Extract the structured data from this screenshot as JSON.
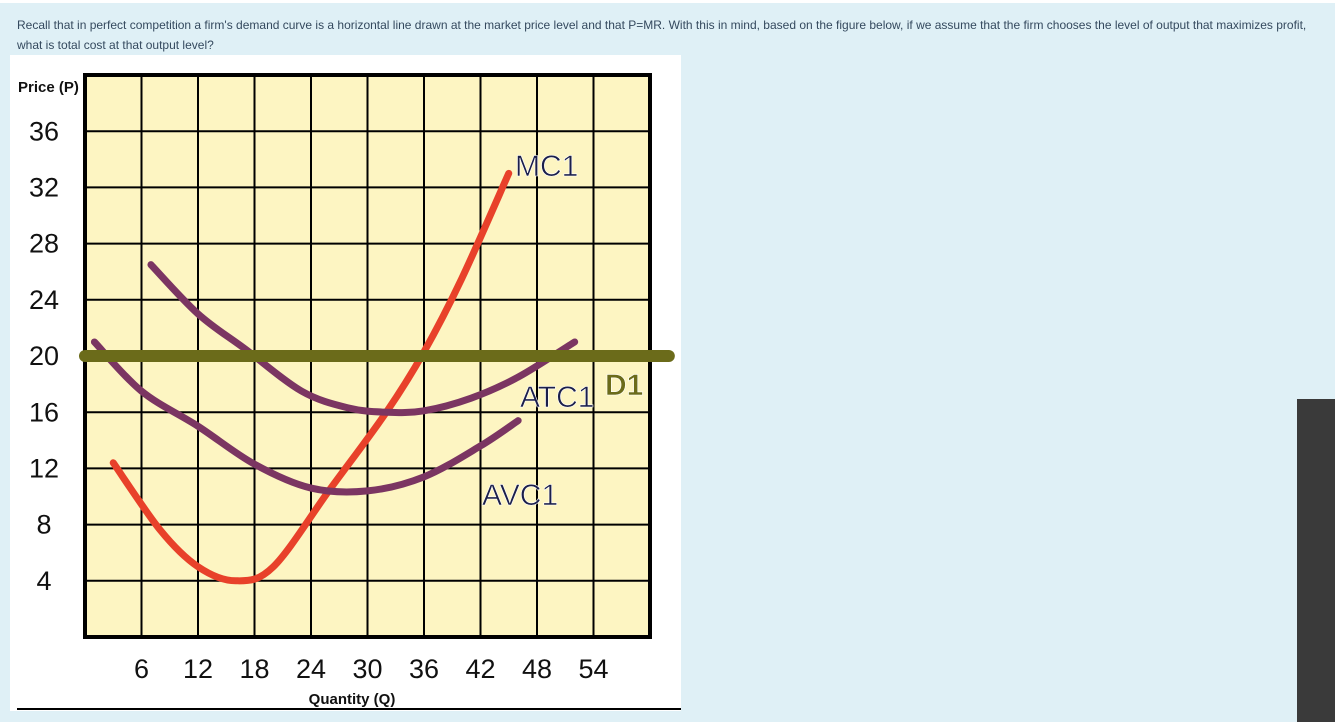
{
  "question": "Recall that in perfect competition a firm's demand curve is a horizontal line drawn at the market price level and that P=MR. With this in mind, based on the figure below, if we assume that the firm chooses the level of output that maximizes profit, what is total cost at that output level?",
  "chart_data": {
    "type": "line",
    "xlabel": "Quantity (Q)",
    "ylabel": "Price (P)",
    "xlim": [
      0,
      60
    ],
    "ylim": [
      0,
      40
    ],
    "xticks": [
      6,
      12,
      18,
      24,
      30,
      36,
      42,
      48,
      54
    ],
    "yticks": [
      4,
      8,
      12,
      16,
      20,
      24,
      28,
      32,
      36
    ],
    "grid": true,
    "series": [
      {
        "name": "MC1",
        "color": "#e8412a",
        "x": [
          3,
          8,
          12,
          16,
          20,
          26,
          32,
          36,
          40,
          45
        ],
        "values": [
          12.4,
          7.6,
          5,
          4,
          5,
          10.5,
          16,
          20.3,
          25.5,
          33
        ]
      },
      {
        "name": "ATC1",
        "color": "#7b3562",
        "x": [
          7,
          12,
          17,
          23,
          28,
          32,
          36,
          41,
          46,
          52
        ],
        "values": [
          26.5,
          23,
          20.5,
          17.5,
          16.3,
          16,
          16.1,
          17,
          18.5,
          21
        ]
      },
      {
        "name": "AVC1",
        "color": "#7b3562",
        "x": [
          1,
          6,
          12,
          18,
          24,
          30,
          36,
          42,
          46
        ],
        "values": [
          21,
          17.5,
          15,
          12.3,
          10.6,
          10.4,
          11.4,
          13.6,
          15.4
        ]
      },
      {
        "name": "D1",
        "color": "#6b6b1a",
        "x": [
          0,
          62
        ],
        "values": [
          20,
          20
        ]
      }
    ]
  }
}
